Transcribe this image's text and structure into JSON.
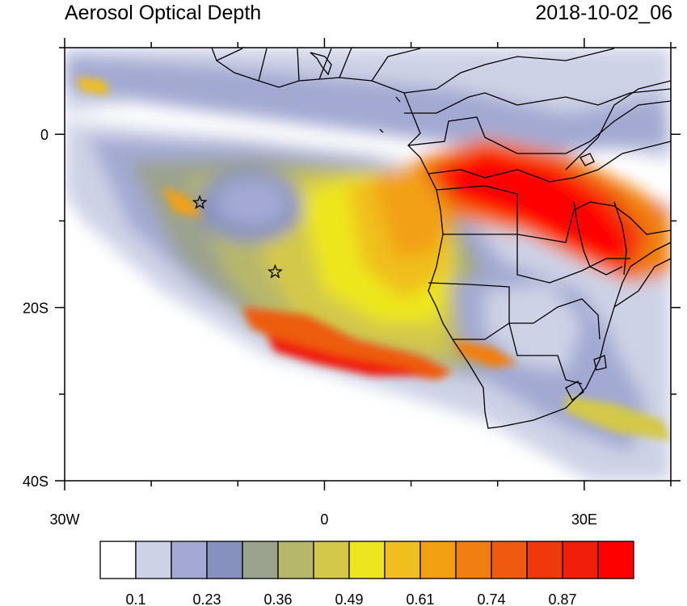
{
  "title": {
    "left": "Aerosol Optical Depth",
    "right": "2018-10-02_06"
  },
  "map": {
    "lon_range": [
      -30,
      40
    ],
    "lat_range": [
      -40,
      10
    ],
    "x_ticks": [
      {
        "value": -30,
        "label": "30W"
      },
      {
        "value": 0,
        "label": "0"
      },
      {
        "value": 30,
        "label": "30E"
      }
    ],
    "y_ticks": [
      {
        "value": 0,
        "label": "0"
      },
      {
        "value": -20,
        "label": "20S"
      },
      {
        "value": -40,
        "label": "40S"
      }
    ],
    "stars": [
      {
        "name": "ascension-star",
        "lon": -14.4,
        "lat": -7.9
      },
      {
        "name": "st-helena-star",
        "lon": -5.7,
        "lat": -15.9
      }
    ]
  },
  "colorbar": {
    "colors": [
      "#ffffff",
      "#cdd2e6",
      "#a3a9d2",
      "#8791bd",
      "#9ba38e",
      "#b7b76a",
      "#d3c84a",
      "#ede61f",
      "#f0be1f",
      "#f2a012",
      "#f07f10",
      "#ee5b10",
      "#f0380c",
      "#f01e0a",
      "#ff0000"
    ],
    "labels": [
      "0.1",
      "0.23",
      "0.36",
      "0.49",
      "0.61",
      "0.74",
      "0.87"
    ]
  }
}
